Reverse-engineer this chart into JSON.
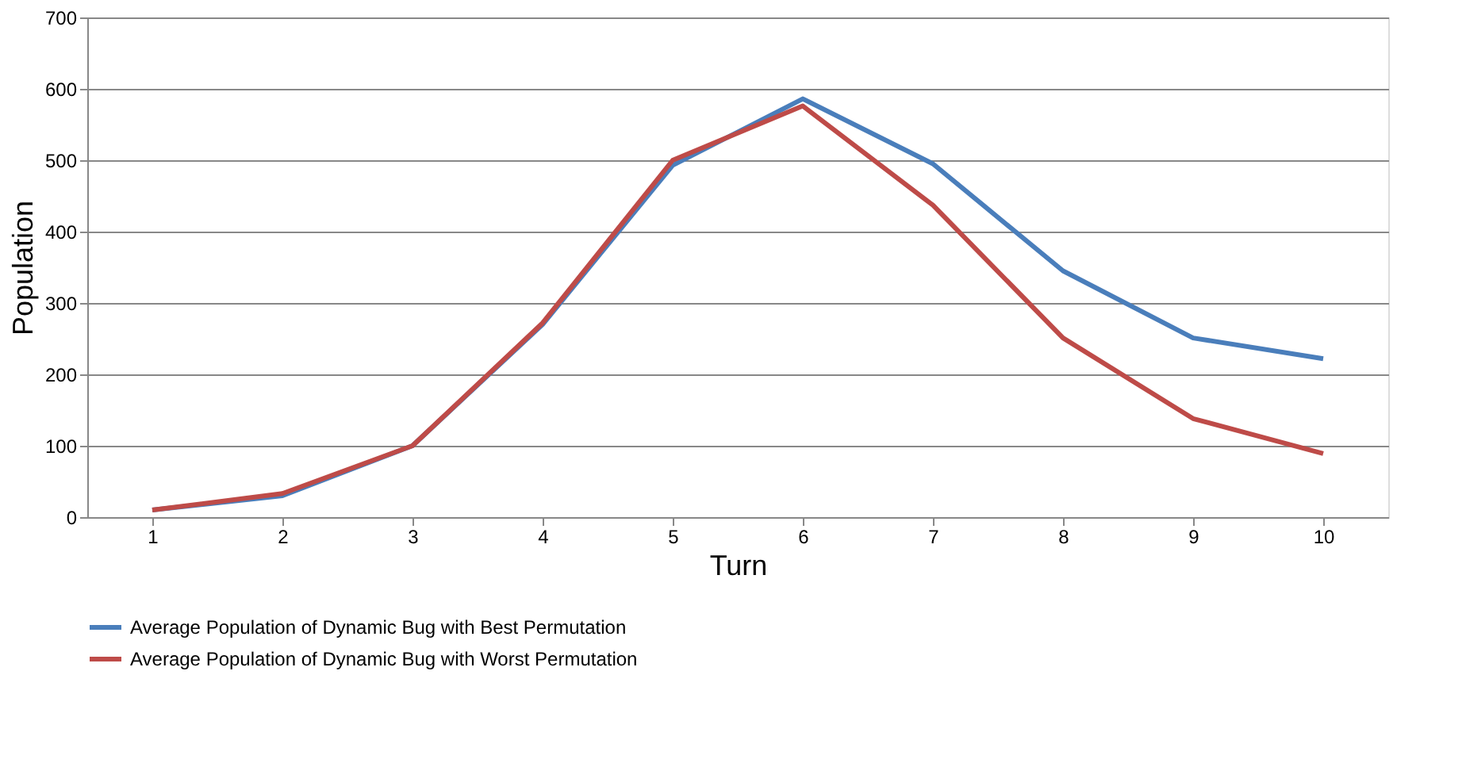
{
  "chart_data": {
    "type": "line",
    "xlabel": "Turn",
    "ylabel": "Population",
    "categories": [
      "1",
      "2",
      "3",
      "4",
      "5",
      "6",
      "7",
      "8",
      "9",
      "10"
    ],
    "series": [
      {
        "name": "Average Population of Dynamic Bug with Best Permutation",
        "color": "#4a7ebb",
        "values": [
          10,
          30,
          100,
          270,
          493,
          586,
          495,
          345,
          251,
          222
        ]
      },
      {
        "name": "Average Population of Dynamic Bug with Worst Permutation",
        "color": "#be4b48",
        "values": [
          10,
          33,
          100,
          272,
          500,
          576,
          437,
          251,
          138,
          89
        ]
      }
    ],
    "ylim": [
      0,
      700
    ],
    "yticks": [
      0,
      100,
      200,
      300,
      400,
      500,
      600,
      700
    ],
    "grid": "y",
    "legend": "bottom",
    "marker": "none",
    "line_style": "solid"
  }
}
